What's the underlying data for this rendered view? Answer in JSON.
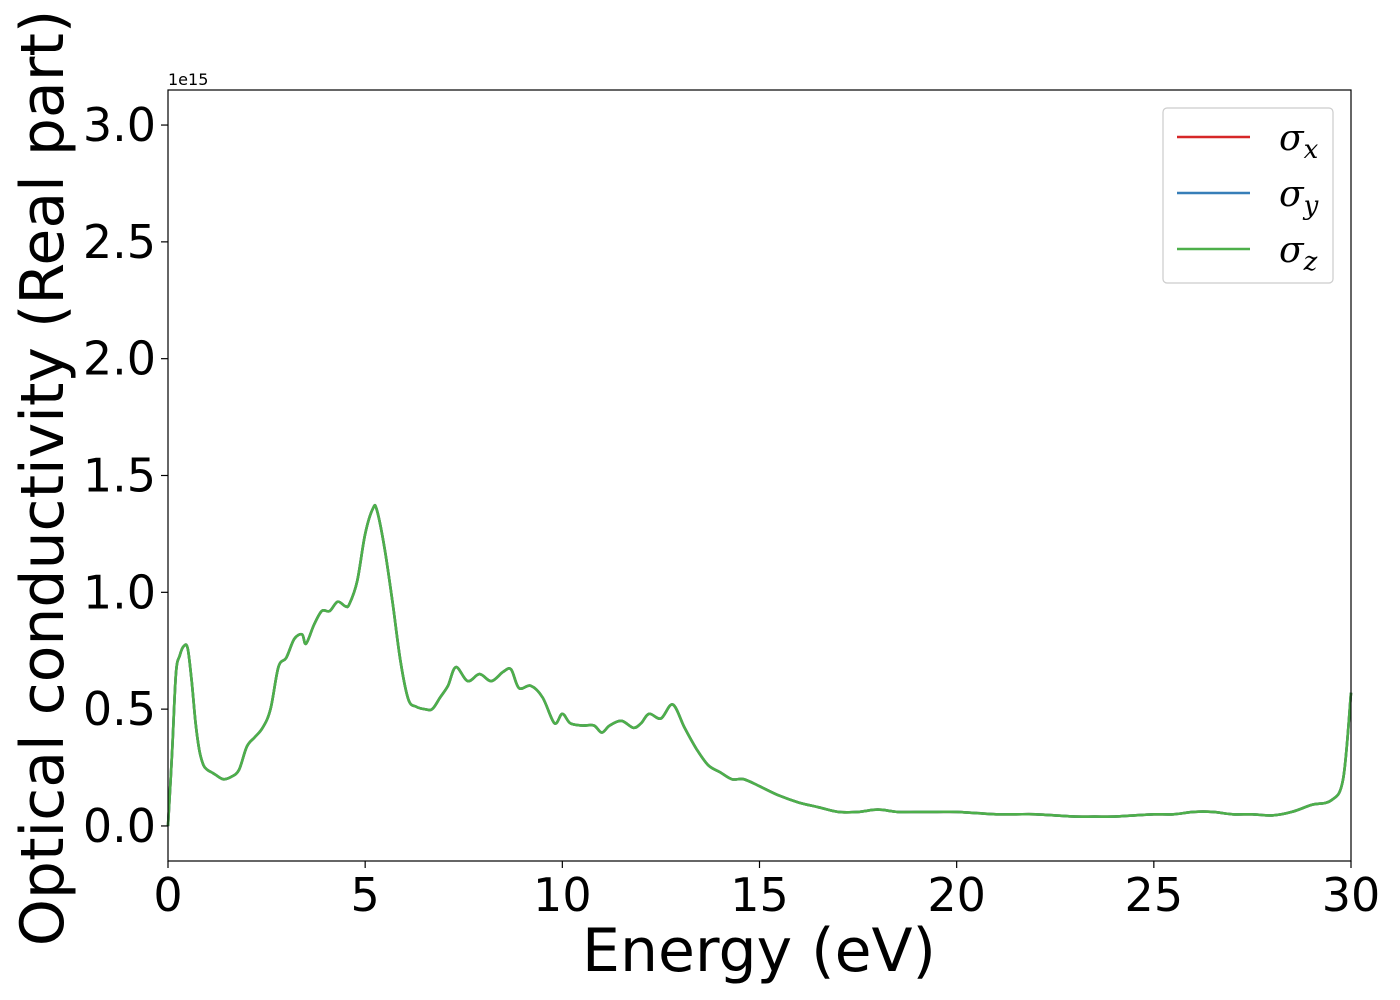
{
  "chart_data": {
    "type": "line",
    "title": "",
    "xlabel": "Energy (eV)",
    "ylabel": "Optical conductivity (Real part)",
    "y_offset_label": "1e15",
    "xlim": [
      0,
      30
    ],
    "ylim": [
      -0.15,
      3.15
    ],
    "xticks": [
      0,
      5,
      10,
      15,
      20,
      25,
      30
    ],
    "xtick_labels": [
      "0",
      "5",
      "10",
      "15",
      "20",
      "25",
      "30"
    ],
    "yticks": [
      0.0,
      0.5,
      1.0,
      1.5,
      2.0,
      2.5,
      3.0
    ],
    "ytick_labels": [
      "0.0",
      "0.5",
      "1.0",
      "1.5",
      "2.0",
      "2.5",
      "3.0"
    ],
    "grid": false,
    "legend_position": "top-right",
    "x": [
      0,
      0.1,
      0.2,
      0.3,
      0.4,
      0.5,
      0.6,
      0.7,
      0.8,
      0.9,
      1.0,
      1.1,
      1.2,
      1.4,
      1.6,
      1.8,
      2.0,
      2.2,
      2.4,
      2.6,
      2.8,
      3.0,
      3.2,
      3.4,
      3.5,
      3.7,
      3.9,
      4.1,
      4.3,
      4.5,
      4.6,
      4.8,
      5.0,
      5.2,
      5.3,
      5.5,
      5.7,
      5.9,
      6.1,
      6.3,
      6.5,
      6.7,
      6.9,
      7.1,
      7.3,
      7.6,
      7.9,
      8.2,
      8.5,
      8.7,
      8.9,
      9.2,
      9.5,
      9.8,
      10.0,
      10.2,
      10.5,
      10.8,
      11.0,
      11.2,
      11.5,
      11.8,
      12.0,
      12.2,
      12.5,
      12.8,
      13.1,
      13.4,
      13.7,
      14.0,
      14.3,
      14.6,
      15.0,
      15.5,
      16.0,
      16.5,
      17.0,
      17.5,
      18.0,
      18.5,
      19.0,
      19.5,
      20.0,
      20.5,
      21.0,
      21.5,
      22.0,
      22.5,
      23.0,
      23.5,
      24.0,
      24.5,
      25.0,
      25.5,
      26.0,
      26.5,
      27.0,
      27.5,
      28.0,
      28.5,
      29.0,
      29.5,
      29.8,
      30.0
    ],
    "series": [
      {
        "name": "σ_x",
        "color": "#d62728",
        "values": [
          0.0,
          0.3,
          0.65,
          0.73,
          0.77,
          0.76,
          0.62,
          0.44,
          0.32,
          0.26,
          0.24,
          0.23,
          0.22,
          0.2,
          0.21,
          0.24,
          0.34,
          0.38,
          0.42,
          0.5,
          0.68,
          0.72,
          0.8,
          0.82,
          0.78,
          0.86,
          0.92,
          0.92,
          0.96,
          0.94,
          0.95,
          1.05,
          1.25,
          1.36,
          1.35,
          1.18,
          0.95,
          0.7,
          0.54,
          0.51,
          0.5,
          0.5,
          0.55,
          0.6,
          0.68,
          0.62,
          0.65,
          0.62,
          0.66,
          0.67,
          0.59,
          0.6,
          0.55,
          0.44,
          0.48,
          0.44,
          0.43,
          0.43,
          0.4,
          0.43,
          0.45,
          0.42,
          0.44,
          0.48,
          0.46,
          0.52,
          0.42,
          0.33,
          0.26,
          0.23,
          0.2,
          0.2,
          0.17,
          0.13,
          0.1,
          0.08,
          0.06,
          0.06,
          0.07,
          0.06,
          0.06,
          0.06,
          0.06,
          0.055,
          0.05,
          0.05,
          0.05,
          0.045,
          0.04,
          0.04,
          0.04,
          0.045,
          0.05,
          0.05,
          0.06,
          0.06,
          0.05,
          0.05,
          0.045,
          0.06,
          0.09,
          0.11,
          0.2,
          0.57
        ]
      },
      {
        "name": "σ_y",
        "color": "#377eb8",
        "values": [
          0.0,
          0.3,
          0.65,
          0.73,
          0.77,
          0.76,
          0.62,
          0.44,
          0.32,
          0.26,
          0.24,
          0.23,
          0.22,
          0.2,
          0.21,
          0.24,
          0.34,
          0.38,
          0.42,
          0.5,
          0.68,
          0.72,
          0.8,
          0.82,
          0.78,
          0.86,
          0.92,
          0.92,
          0.96,
          0.94,
          0.95,
          1.05,
          1.25,
          1.36,
          1.35,
          1.18,
          0.95,
          0.7,
          0.54,
          0.51,
          0.5,
          0.5,
          0.55,
          0.6,
          0.68,
          0.62,
          0.65,
          0.62,
          0.66,
          0.67,
          0.59,
          0.6,
          0.55,
          0.44,
          0.48,
          0.44,
          0.43,
          0.43,
          0.4,
          0.43,
          0.45,
          0.42,
          0.44,
          0.48,
          0.46,
          0.52,
          0.42,
          0.33,
          0.26,
          0.23,
          0.2,
          0.2,
          0.17,
          0.13,
          0.1,
          0.08,
          0.06,
          0.06,
          0.07,
          0.06,
          0.06,
          0.06,
          0.06,
          0.055,
          0.05,
          0.05,
          0.05,
          0.045,
          0.04,
          0.04,
          0.04,
          0.045,
          0.05,
          0.05,
          0.06,
          0.06,
          0.05,
          0.05,
          0.045,
          0.06,
          0.09,
          0.11,
          0.2,
          0.57
        ]
      },
      {
        "name": "σ_z",
        "color": "#4daf4a",
        "values": [
          0.0,
          0.3,
          0.65,
          0.73,
          0.77,
          0.76,
          0.62,
          0.44,
          0.32,
          0.26,
          0.24,
          0.23,
          0.22,
          0.2,
          0.21,
          0.24,
          0.34,
          0.38,
          0.42,
          0.5,
          0.68,
          0.72,
          0.8,
          0.82,
          0.78,
          0.86,
          0.92,
          0.92,
          0.96,
          0.94,
          0.95,
          1.05,
          1.25,
          1.36,
          1.35,
          1.18,
          0.95,
          0.7,
          0.54,
          0.51,
          0.5,
          0.5,
          0.55,
          0.6,
          0.68,
          0.62,
          0.65,
          0.62,
          0.66,
          0.67,
          0.59,
          0.6,
          0.55,
          0.44,
          0.48,
          0.44,
          0.43,
          0.43,
          0.4,
          0.43,
          0.45,
          0.42,
          0.44,
          0.48,
          0.46,
          0.52,
          0.42,
          0.33,
          0.26,
          0.23,
          0.2,
          0.2,
          0.17,
          0.13,
          0.1,
          0.08,
          0.06,
          0.06,
          0.07,
          0.06,
          0.06,
          0.06,
          0.06,
          0.055,
          0.05,
          0.05,
          0.05,
          0.045,
          0.04,
          0.04,
          0.04,
          0.045,
          0.05,
          0.05,
          0.06,
          0.06,
          0.05,
          0.05,
          0.045,
          0.06,
          0.09,
          0.11,
          0.2,
          0.57
        ]
      }
    ],
    "legend": {
      "entries": [
        {
          "base": "σ",
          "sub": "x",
          "color": "#d62728"
        },
        {
          "base": "σ",
          "sub": "y",
          "color": "#377eb8"
        },
        {
          "base": "σ",
          "sub": "z",
          "color": "#4daf4a"
        }
      ]
    }
  }
}
